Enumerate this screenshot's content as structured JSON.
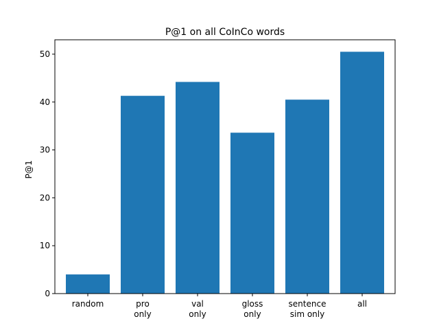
{
  "chart_data": {
    "type": "bar",
    "title": "P@1 on all CoInCo words",
    "xlabel": "",
    "ylabel": "P@1",
    "categories": [
      [
        "random"
      ],
      [
        "pro",
        "only"
      ],
      [
        "val",
        "only"
      ],
      [
        "gloss",
        "only"
      ],
      [
        "sentence",
        "sim only"
      ],
      [
        "all"
      ]
    ],
    "values": [
      4.0,
      41.3,
      44.2,
      33.6,
      40.5,
      50.5
    ],
    "ylim": [
      0,
      53
    ],
    "yticks": [
      0,
      10,
      20,
      30,
      40,
      50
    ],
    "bar_color": "#1f77b4",
    "grid": false,
    "legend": "none"
  }
}
